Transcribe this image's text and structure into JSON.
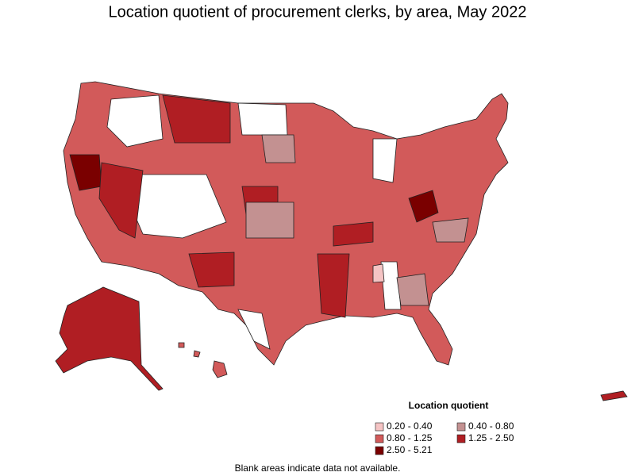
{
  "title": "Location quotient of procurement clerks, by area, May 2022",
  "legend": {
    "title": "Location quotient",
    "items": [
      {
        "label": "0.20 - 0.40",
        "color": "#f5c4c4"
      },
      {
        "label": "0.40 - 0.80",
        "color": "#c39191"
      },
      {
        "label": "0.80 - 1.25",
        "color": "#d25a5a"
      },
      {
        "label": "1.25 - 2.50",
        "color": "#b01e23"
      },
      {
        "label": "2.50 - 5.21",
        "color": "#7a0000"
      }
    ]
  },
  "footnote": "Blank areas indicate data not available."
}
